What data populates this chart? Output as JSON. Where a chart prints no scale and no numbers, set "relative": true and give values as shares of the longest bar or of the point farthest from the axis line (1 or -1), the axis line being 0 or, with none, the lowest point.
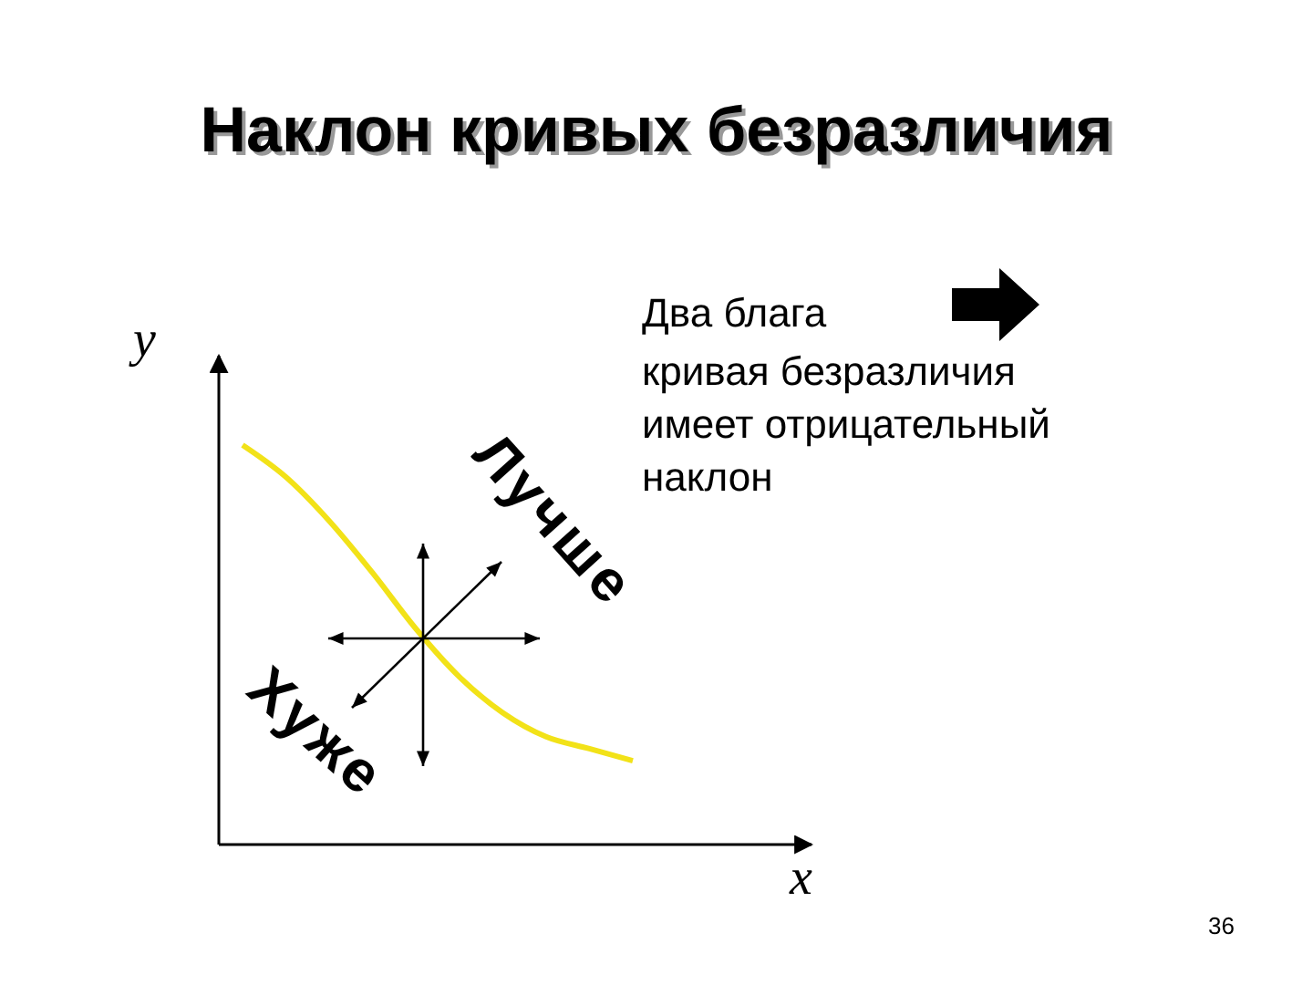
{
  "chart_data": {
    "type": "line",
    "title": "Наклон кривых безразличия",
    "xlabel": "x",
    "ylabel": "y",
    "relative": true,
    "categories": [
      null,
      null,
      null,
      null,
      null,
      null,
      null,
      null,
      null,
      null
    ],
    "series": [
      {
        "color": "#f2e218",
        "values": [
          1,
          0.92,
          0.81,
          0.68,
          0.54,
          0.42,
          0.33,
          0.27,
          0.24,
          0.21
        ]
      }
    ],
    "annotations": [
      "Два блага",
      "кривая безразличия\nимеет отрицательный\nнаклон",
      "Лучше",
      "Хуже",
      "36"
    ]
  }
}
